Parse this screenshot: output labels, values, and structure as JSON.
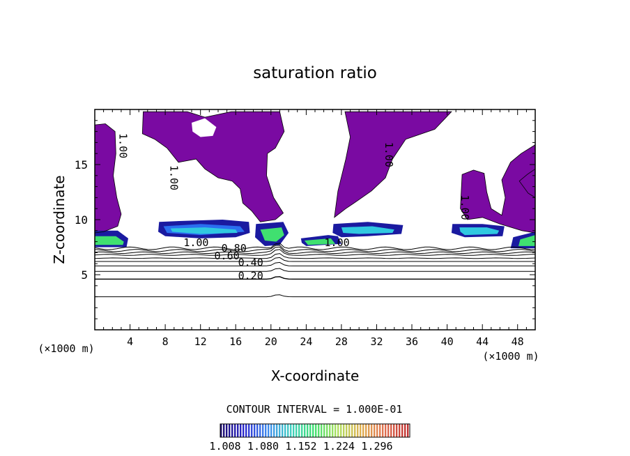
{
  "chart_data": {
    "type": "contour",
    "title": "saturation ratio",
    "xlabel": "X-coordinate",
    "ylabel": "Z-coordinate",
    "x_unit": "(×1000 m)",
    "y_unit": "",
    "xlim": [
      0,
      50
    ],
    "ylim": [
      0,
      20
    ],
    "x_ticks": [
      4,
      8,
      12,
      16,
      20,
      24,
      28,
      32,
      36,
      40,
      44,
      48
    ],
    "y_ticks": [
      5,
      10,
      15
    ],
    "contour_interval_label": "CONTOUR INTERVAL = 1.000E-01",
    "contour_labels": [
      {
        "text": "0.20",
        "x": 17.7,
        "z": 4.6
      },
      {
        "text": "0.40",
        "x": 17.7,
        "z": 5.8
      },
      {
        "text": "0.60",
        "x": 15.0,
        "z": 6.4
      },
      {
        "text": "0.80",
        "x": 15.8,
        "z": 7.1
      },
      {
        "text": "1.00",
        "x": 11.5,
        "z": 7.6
      },
      {
        "text": "1.00",
        "x": 27.5,
        "z": 7.6
      },
      {
        "text": "1.00",
        "x": 2.8,
        "z": 16.7
      },
      {
        "text": "1.00",
        "x": 8.6,
        "z": 13.8
      },
      {
        "text": "1.00",
        "x": 33.0,
        "z": 15.9
      },
      {
        "text": "1.00",
        "x": 41.6,
        "z": 11.1
      }
    ],
    "colorbar": {
      "ticks": [
        "1.008",
        "1.080",
        "1.152",
        "1.224",
        "1.296"
      ],
      "colors": [
        "#1c0c6e",
        "#2c2ad0",
        "#3f8cf0",
        "#40d0c0",
        "#40e070",
        "#b0e060",
        "#e0b050",
        "#e07050",
        "#c03030"
      ]
    },
    "fill_colors": {
      "saturated": "#7a0aa2",
      "dark_blue": "#1a1aa0",
      "blue": "#2a6ef0",
      "cyan": "#30c8e0",
      "green": "#40e070"
    }
  }
}
